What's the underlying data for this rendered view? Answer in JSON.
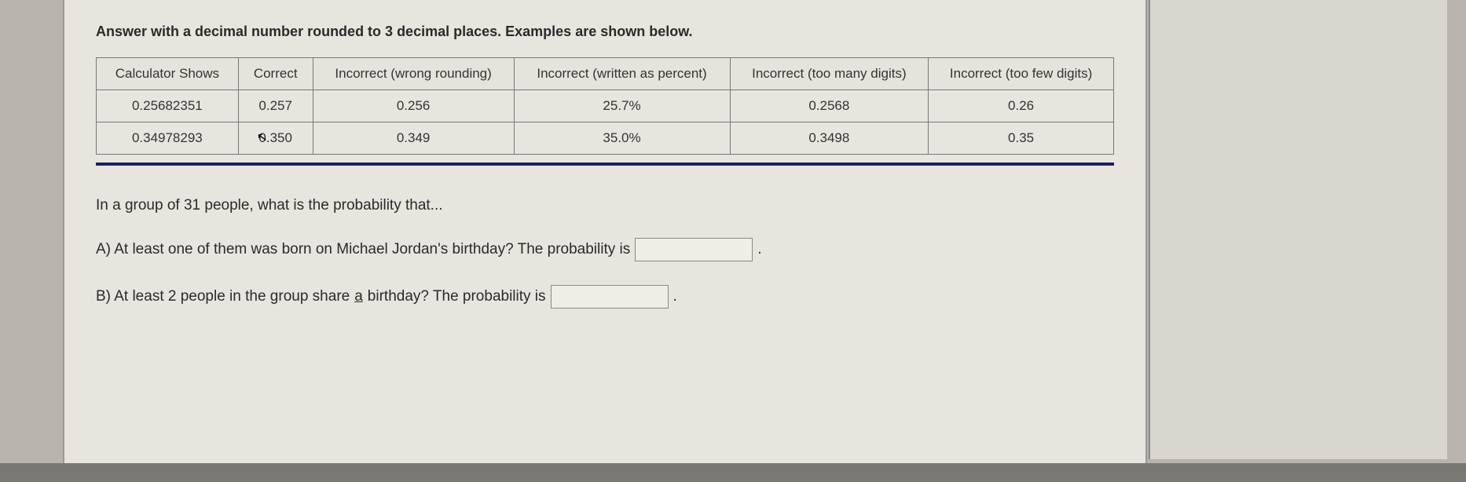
{
  "instruction": "Answer with a decimal number rounded to 3 decimal places. Examples are shown below.",
  "table": {
    "columns": [
      "Calculator Shows",
      "Correct",
      "Incorrect (wrong rounding)",
      "Incorrect (written as percent)",
      "Incorrect (too many digits)",
      "Incorrect (too few digits)"
    ],
    "rows": [
      [
        "0.25682351",
        "0.257",
        "0.256",
        "25.7%",
        "0.2568",
        "0.26"
      ],
      [
        "0.34978293",
        "0.350",
        "0.349",
        "35.0%",
        "0.3498",
        "0.35"
      ]
    ],
    "border_color": "#777777",
    "divider_color": "#1a1f5c"
  },
  "question": {
    "intro": "In a group of 31 people, what is the probability that...",
    "partA_prefix": "A) At least one of them was born on Michael Jordan's birthday?   The probability is",
    "partA_suffix": ".",
    "partA_value": "",
    "partB_prefix": "B) At least 2 people in the group share ",
    "partB_underlined": "a",
    "partB_mid": " birthday? The probability is",
    "partB_suffix": ".",
    "partB_value": ""
  },
  "colors": {
    "page_bg": "#e8e5df",
    "outer_bg": "#b8b4ad",
    "panel_bg": "#d9d6cf",
    "text": "#2a2a2a"
  }
}
